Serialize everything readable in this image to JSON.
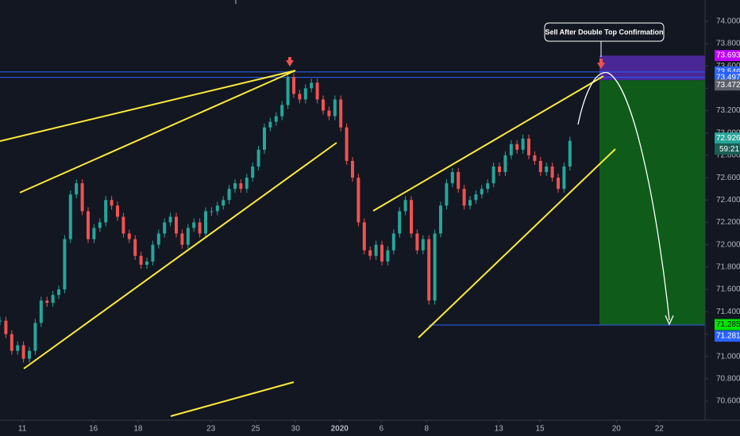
{
  "chart_data": {
    "type": "candlestick",
    "series": [
      {
        "name": "USDINR",
        "up_color": "#26a69a",
        "down_color": "#ef5350",
        "values": [
          71.32,
          71.2,
          71.05,
          71.1,
          70.98,
          71.05,
          71.3,
          71.5,
          71.48,
          71.55,
          71.6,
          72.05,
          72.45,
          72.55,
          72.3,
          72.05,
          72.15,
          72.2,
          72.4,
          72.35,
          72.25,
          72.1,
          72.05,
          71.9,
          71.82,
          71.85,
          72.0,
          72.1,
          72.2,
          72.25,
          72.1,
          72.0,
          72.15,
          72.2,
          72.1,
          72.3,
          72.3,
          72.35,
          72.4,
          72.5,
          72.55,
          72.5,
          72.6,
          72.7,
          72.85,
          73.05,
          73.1,
          73.15,
          73.25,
          73.5,
          73.35,
          73.3,
          73.4,
          73.45,
          73.3,
          73.2,
          73.15,
          73.3,
          73.05,
          72.75,
          72.6,
          72.2,
          71.95,
          71.9,
          72.0,
          71.85,
          71.95,
          72.1,
          72.3,
          72.4,
          72.1,
          71.95,
          72.05,
          71.5,
          72.1,
          72.35,
          72.55,
          72.65,
          72.5,
          72.35,
          72.4,
          72.45,
          72.5,
          72.55,
          72.7,
          72.65,
          72.8,
          72.9,
          72.85,
          72.95,
          72.8,
          72.75,
          72.65,
          72.7,
          72.6,
          72.5,
          72.7,
          72.93
        ]
      }
    ],
    "xlim": [
      0,
      120
    ],
    "xticks": [
      {
        "value": 3.8,
        "label": "11"
      },
      {
        "value": 15.9,
        "label": "16"
      },
      {
        "value": 23.5,
        "label": "18"
      },
      {
        "value": 35.9,
        "label": "23"
      },
      {
        "value": 43.5,
        "label": "25"
      },
      {
        "value": 50.3,
        "label": "30"
      },
      {
        "value": 57.8,
        "label": "2020",
        "bold": true
      },
      {
        "value": 64.9,
        "label": "6"
      },
      {
        "value": 72.6,
        "label": "8"
      },
      {
        "value": 84.9,
        "label": "13"
      },
      {
        "value": 91.9,
        "label": "15"
      },
      {
        "value": 104.9,
        "label": "20"
      },
      {
        "value": 112.2,
        "label": "22"
      }
    ],
    "ylim": [
      70.43,
      74.19
    ],
    "yticks": [
      {
        "value": 70.6,
        "label": "70.600"
      },
      {
        "value": 70.8,
        "label": "70.800"
      },
      {
        "value": 71,
        "label": "71.000"
      },
      {
        "value": 71.2,
        "label": "71.200"
      },
      {
        "value": 71.4,
        "label": "71.400"
      },
      {
        "value": 71.6,
        "label": "71.600"
      },
      {
        "value": 71.8,
        "label": "71.800"
      },
      {
        "value": 72,
        "label": "72.000"
      },
      {
        "value": 72.2,
        "label": "72.200"
      },
      {
        "value": 72.4,
        "label": "72.400"
      },
      {
        "value": 72.6,
        "label": "72.600"
      },
      {
        "value": 72.8,
        "label": "72.800"
      },
      {
        "value": 73,
        "label": "73.000"
      },
      {
        "value": 73.2,
        "label": "73.200"
      },
      {
        "value": 73.4,
        "label": "73.400"
      },
      {
        "value": 73.6,
        "label": "73.600"
      },
      {
        "value": 73.8,
        "label": "73.800"
      },
      {
        "value": 74,
        "label": "74.000"
      }
    ],
    "levels": [
      {
        "value": 73.546,
        "label": "73.546"
      },
      {
        "value": 73.497,
        "label": "73.497"
      },
      {
        "value": 71.281,
        "label": "71.281"
      }
    ],
    "level_color": "#2962ff",
    "position": {
      "stop": {
        "value": 73.693,
        "label": "73.693",
        "color": "#c000ff"
      },
      "entry": {
        "value": 73.472,
        "label": "73.472",
        "color": "#5d606b"
      },
      "target": {
        "value": 71.285,
        "label": "71.285",
        "color": "#00e600"
      },
      "risk_color": "#4a2796",
      "reward_color": "#0f5c1a"
    },
    "last_price": {
      "value": 72.926,
      "label": "72.926",
      "countdown": "59:21",
      "color": "#26a69a"
    },
    "annotation": "Sell After Double Top Confirmation"
  }
}
